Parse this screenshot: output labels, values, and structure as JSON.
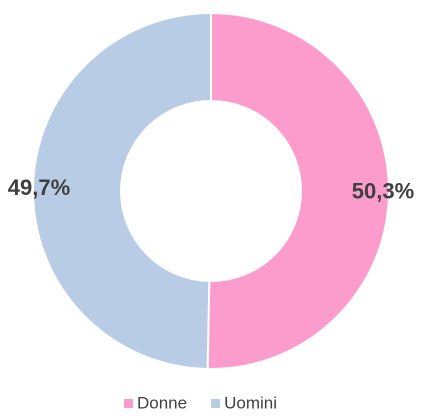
{
  "chart_data": {
    "type": "pie",
    "categories": [
      "Donne",
      "Uomini"
    ],
    "values": [
      50.3,
      49.7
    ],
    "value_labels": [
      "50,3%",
      "49,7%"
    ],
    "colors": [
      "#fb9ccc",
      "#b9cce5"
    ],
    "donut": true,
    "legend": "bottom"
  }
}
